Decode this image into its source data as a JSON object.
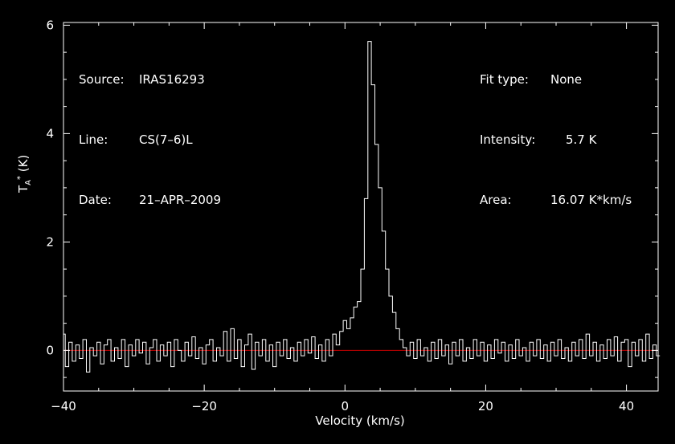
{
  "header": {
    "source_label": "Source:",
    "source_value": "IRAS16293",
    "line_label": "Line:",
    "line_value": "CS(7–6)L",
    "date_label": "Date:",
    "date_value": "21–APR–2009",
    "fit_label": "Fit type:",
    "fit_value": "None",
    "intensity_label": "Intensity:",
    "intensity_value": "5.7 K",
    "area_label": "Area:",
    "area_value": "16.07 K*km/s"
  },
  "colors": {
    "background": "#000000",
    "foreground": "#ffffff",
    "baseline": "#cc0000"
  },
  "chart_data": {
    "type": "line",
    "xlabel": "Velocity (km/s)",
    "ylabel_main": "T",
    "ylabel_sub": "A",
    "ylabel_sup": "*",
    "ylabel_unit": " (K)",
    "xlim": [
      -40,
      44.5
    ],
    "ylim": [
      -0.75,
      6.05
    ],
    "xticks": [
      -40,
      -20,
      0,
      20,
      40
    ],
    "xtick_labels": [
      "−40",
      "−20",
      "0",
      "20",
      "40"
    ],
    "yticks": [
      0,
      2,
      4,
      6
    ],
    "ytick_labels": [
      "0",
      "2",
      "4",
      "6"
    ],
    "baseline_y": 0,
    "series": [
      {
        "values": [
          [
            -40,
            0.3
          ],
          [
            -39.5,
            -0.3
          ],
          [
            -39,
            0.15
          ],
          [
            -38.5,
            -0.2
          ],
          [
            -38,
            0.1
          ],
          [
            -37.5,
            -0.15
          ],
          [
            -37,
            0.2
          ],
          [
            -36.5,
            -0.4
          ],
          [
            -36,
            0.05
          ],
          [
            -35.5,
            -0.1
          ],
          [
            -35,
            0.15
          ],
          [
            -34.5,
            -0.25
          ],
          [
            -34,
            0.1
          ],
          [
            -33.5,
            0.2
          ],
          [
            -33,
            -0.2
          ],
          [
            -32.5,
            0.05
          ],
          [
            -32,
            -0.15
          ],
          [
            -31.5,
            0.2
          ],
          [
            -31,
            -0.3
          ],
          [
            -30.5,
            0.1
          ],
          [
            -30,
            -0.1
          ],
          [
            -29.5,
            0.2
          ],
          [
            -29,
            -0.05
          ],
          [
            -28.5,
            0.15
          ],
          [
            -28,
            -0.25
          ],
          [
            -27.5,
            0.05
          ],
          [
            -27,
            0.2
          ],
          [
            -26.5,
            -0.2
          ],
          [
            -26,
            0.1
          ],
          [
            -25.5,
            -0.1
          ],
          [
            -25,
            0.15
          ],
          [
            -24.5,
            -0.3
          ],
          [
            -24,
            0.2
          ],
          [
            -23.5,
            0
          ],
          [
            -23,
            -0.2
          ],
          [
            -22.5,
            0.15
          ],
          [
            -22,
            -0.1
          ],
          [
            -21.5,
            0.25
          ],
          [
            -21,
            -0.15
          ],
          [
            -20.5,
            0.05
          ],
          [
            -20,
            -0.25
          ],
          [
            -19.5,
            0.1
          ],
          [
            -19,
            0.2
          ],
          [
            -18.5,
            -0.2
          ],
          [
            -18,
            0.05
          ],
          [
            -17.5,
            -0.1
          ],
          [
            -17,
            0.35
          ],
          [
            -16.5,
            -0.2
          ],
          [
            -16,
            0.4
          ],
          [
            -15.5,
            -0.15
          ],
          [
            -15,
            0.2
          ],
          [
            -14.5,
            -0.3
          ],
          [
            -14,
            0.1
          ],
          [
            -13.5,
            0.3
          ],
          [
            -13,
            -0.35
          ],
          [
            -12.5,
            0.15
          ],
          [
            -12,
            -0.1
          ],
          [
            -11.5,
            0.2
          ],
          [
            -11,
            -0.2
          ],
          [
            -10.5,
            0.1
          ],
          [
            -10,
            -0.3
          ],
          [
            -9.5,
            0.15
          ],
          [
            -9,
            -0.1
          ],
          [
            -8.5,
            0.2
          ],
          [
            -8,
            -0.15
          ],
          [
            -7.5,
            0.05
          ],
          [
            -7,
            -0.2
          ],
          [
            -6.5,
            0.15
          ],
          [
            -6,
            -0.1
          ],
          [
            -5.5,
            0.2
          ],
          [
            -5,
            -0.05
          ],
          [
            -4.5,
            0.25
          ],
          [
            -4,
            -0.15
          ],
          [
            -3.5,
            0.1
          ],
          [
            -3,
            -0.2
          ],
          [
            -2.5,
            0.2
          ],
          [
            -2,
            -0.1
          ],
          [
            -1.5,
            0.3
          ],
          [
            -1,
            0.1
          ],
          [
            -0.5,
            0.35
          ],
          [
            0,
            0.55
          ],
          [
            0.5,
            0.4
          ],
          [
            1,
            0.6
          ],
          [
            1.5,
            0.8
          ],
          [
            2,
            0.9
          ],
          [
            2.5,
            1.5
          ],
          [
            3,
            2.8
          ],
          [
            3.5,
            5.7
          ],
          [
            4,
            4.9
          ],
          [
            4.5,
            3.8
          ],
          [
            5,
            3.0
          ],
          [
            5.5,
            2.2
          ],
          [
            6,
            1.5
          ],
          [
            6.5,
            1.0
          ],
          [
            7,
            0.7
          ],
          [
            7.5,
            0.4
          ],
          [
            8,
            0.2
          ],
          [
            8.5,
            0.05
          ],
          [
            9,
            -0.1
          ],
          [
            9.5,
            0.15
          ],
          [
            10,
            -0.15
          ],
          [
            10.5,
            0.2
          ],
          [
            11,
            -0.1
          ],
          [
            11.5,
            0.05
          ],
          [
            12,
            -0.2
          ],
          [
            12.5,
            0.15
          ],
          [
            13,
            -0.15
          ],
          [
            13.5,
            0.2
          ],
          [
            14,
            -0.1
          ],
          [
            14.5,
            0.1
          ],
          [
            15,
            -0.25
          ],
          [
            15.5,
            0.15
          ],
          [
            16,
            -0.1
          ],
          [
            16.5,
            0.2
          ],
          [
            17,
            -0.2
          ],
          [
            17.5,
            0.05
          ],
          [
            18,
            -0.15
          ],
          [
            18.5,
            0.2
          ],
          [
            19,
            -0.1
          ],
          [
            19.5,
            0.15
          ],
          [
            20,
            -0.2
          ],
          [
            20.5,
            0.1
          ],
          [
            21,
            -0.15
          ],
          [
            21.5,
            0.2
          ],
          [
            22,
            -0.05
          ],
          [
            22.5,
            0.15
          ],
          [
            23,
            -0.2
          ],
          [
            23.5,
            0.1
          ],
          [
            24,
            -0.15
          ],
          [
            24.5,
            0.2
          ],
          [
            25,
            -0.1
          ],
          [
            25.5,
            0.05
          ],
          [
            26,
            -0.2
          ],
          [
            26.5,
            0.15
          ],
          [
            27,
            -0.1
          ],
          [
            27.5,
            0.2
          ],
          [
            28,
            -0.15
          ],
          [
            28.5,
            0.1
          ],
          [
            29,
            -0.2
          ],
          [
            29.5,
            0.15
          ],
          [
            30,
            -0.1
          ],
          [
            30.5,
            0.2
          ],
          [
            31,
            -0.15
          ],
          [
            31.5,
            0.05
          ],
          [
            32,
            -0.2
          ],
          [
            32.5,
            0.15
          ],
          [
            33,
            -0.1
          ],
          [
            33.5,
            0.2
          ],
          [
            34,
            -0.15
          ],
          [
            34.5,
            0.3
          ],
          [
            35,
            -0.1
          ],
          [
            35.5,
            0.15
          ],
          [
            36,
            -0.2
          ],
          [
            36.5,
            0.1
          ],
          [
            37,
            -0.15
          ],
          [
            37.5,
            0.2
          ],
          [
            38,
            -0.1
          ],
          [
            38.5,
            0.25
          ],
          [
            39,
            -0.2
          ],
          [
            39.5,
            0.15
          ],
          [
            40,
            0.2
          ],
          [
            40.5,
            -0.3
          ],
          [
            41,
            0.15
          ],
          [
            41.5,
            -0.1
          ],
          [
            42,
            0.2
          ],
          [
            42.5,
            -0.2
          ],
          [
            43,
            0.3
          ],
          [
            43.5,
            -0.15
          ],
          [
            44,
            0.1
          ],
          [
            44.5,
            -0.1
          ]
        ]
      }
    ]
  }
}
